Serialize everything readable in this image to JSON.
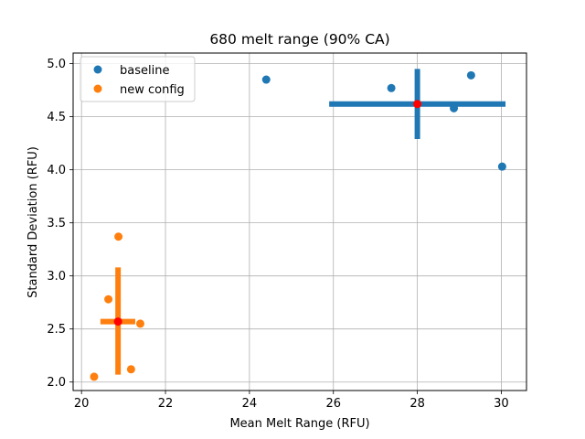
{
  "chart_data": {
    "type": "scatter",
    "title": "680 melt range (90% CA)",
    "xlabel": "Mean Melt Range (RFU)",
    "ylabel": "Standard Deviation (RFU)",
    "xlim": [
      19.8,
      30.6
    ],
    "ylim": [
      1.92,
      5.1
    ],
    "xticks": [
      20,
      22,
      24,
      26,
      28,
      30
    ],
    "yticks": [
      2.0,
      2.5,
      3.0,
      3.5,
      4.0,
      4.5,
      5.0
    ],
    "xtick_labels": [
      "20",
      "22",
      "24",
      "26",
      "28",
      "30"
    ],
    "ytick_labels": [
      "2.0",
      "2.5",
      "3.0",
      "3.5",
      "4.0",
      "4.5",
      "5.0"
    ],
    "grid": true,
    "legend_position": "top-left",
    "series": [
      {
        "name": "baseline",
        "color": "#1f77b4",
        "x": [
          24.4,
          27.38,
          28.87,
          29.28,
          30.02
        ],
        "y": [
          4.85,
          4.77,
          4.58,
          4.89,
          4.03
        ],
        "center": {
          "x": 28.0,
          "y": 4.62,
          "color": "#ff0000"
        },
        "interval": {
          "x": [
            25.9,
            30.1
          ],
          "y": [
            4.29,
            4.95
          ]
        }
      },
      {
        "name": "new config",
        "color": "#ff7f0e",
        "x": [
          20.88,
          20.64,
          21.4,
          20.3,
          21.18
        ],
        "y": [
          3.37,
          2.78,
          2.55,
          2.05,
          2.12
        ],
        "center": {
          "x": 20.87,
          "y": 2.57,
          "color": "#ff0000"
        },
        "interval": {
          "x": [
            20.45,
            21.28
          ],
          "y": [
            2.07,
            3.08
          ]
        }
      }
    ]
  }
}
